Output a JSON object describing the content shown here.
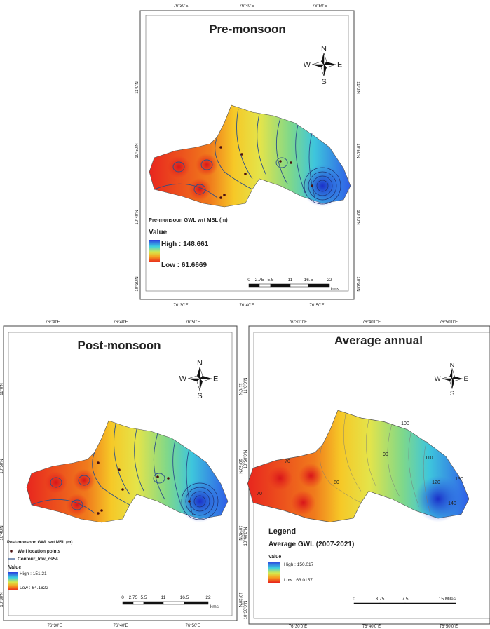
{
  "panels": [
    {
      "title": "Pre-monsoon",
      "top_labels": [
        "76°30'E",
        "76°40'E",
        "76°50'E"
      ],
      "bottom_labels": [
        "76°30'E",
        "76°40'E",
        "76°50'E"
      ],
      "left_labels": [
        "11°0'N",
        "10°50'N",
        "10°40'N",
        "10°30'N"
      ],
      "right_labels": [
        "11°0'N",
        "10°50'N",
        "10°40'N",
        "10°30'N"
      ],
      "compass": {
        "n": "N",
        "w": "W",
        "e": "E",
        "s": "S"
      },
      "legend": {
        "title": "Pre-monsoon GWL wrt MSL (m)",
        "value": "Value",
        "high": "High : 148.661",
        "low": "Low : 61.6669"
      },
      "scale": {
        "ticks": [
          "0",
          "2.75",
          "5.5",
          "11",
          "16.5",
          "22"
        ],
        "unit": "kms"
      }
    },
    {
      "title": "Post-monsoon",
      "top_labels": [
        "76°30'E",
        "76°40'E",
        "76°50'E"
      ],
      "bottom_labels": [
        "76°30'E",
        "76°40'E",
        "76°50'E"
      ],
      "left_labels": [
        "11°0'N",
        "10°50'N",
        "10°40'N",
        "10°30'N"
      ],
      "right_labels": [
        "11°0'N",
        "10°50'N",
        "10°40'N",
        "10°30'N"
      ],
      "compass": {
        "n": "N",
        "w": "W",
        "e": "E",
        "s": "S"
      },
      "legend": {
        "title": "Post-monsoon GWL wrt MSL (m)",
        "items": [
          "Well location points",
          "Contour_ldw_cs54"
        ],
        "value": "Value",
        "high": "High : 151.21",
        "low": "Low : 64.1622"
      },
      "scale": {
        "ticks": [
          "0",
          "2.75",
          "5.5",
          "11",
          "16.5",
          "22"
        ],
        "unit": "kms"
      }
    },
    {
      "title": "Average annual",
      "top_labels": [
        "76°30'0\"E",
        "76°40'0\"E",
        "76°50'0\"E"
      ],
      "bottom_labels": [
        "76°30'0\"E",
        "76°40'0\"E",
        "76°50'0\"E"
      ],
      "left_labels": [
        "11°0'0\"N",
        "10°50'0\"N",
        "10°40'0\"N",
        "10°30'0\"N"
      ],
      "compass": {
        "n": "N",
        "w": "W",
        "e": "E",
        "s": "S"
      },
      "contour_labels": [
        "70",
        "80",
        "90",
        "100",
        "110",
        "120",
        "130",
        "140",
        "70"
      ],
      "legend": {
        "heading": "Legend",
        "title": "Average GWL (2007-2021)",
        "value": "Value",
        "high": "High : 150.017",
        "low": "Low : 63.0157"
      },
      "scale": {
        "ticks": [
          "0",
          "3.75",
          "7.5",
          "15 Miles"
        ]
      }
    }
  ]
}
